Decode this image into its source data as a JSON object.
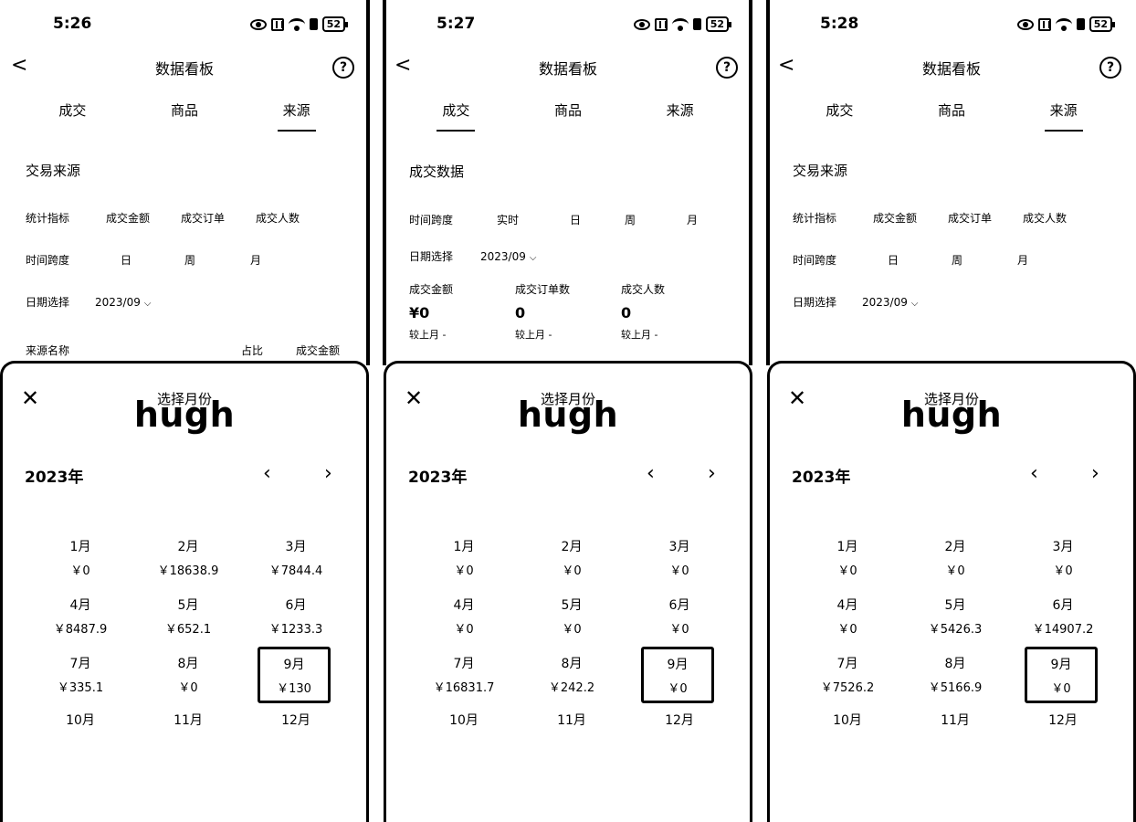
{
  "phones": [
    {
      "status": {
        "time": "5:26",
        "battery": "52"
      },
      "header": {
        "back": "<",
        "title": "数据看板",
        "help": "?"
      },
      "tabs": [
        "成交",
        "商品",
        "来源"
      ],
      "active_tab": 2,
      "content": {
        "section_title": "交易来源",
        "metric_row": {
          "label": "统计指标",
          "options": [
            "成交金额",
            "成交订单",
            "成交人数"
          ]
        },
        "span_row": {
          "label": "时间跨度",
          "options": [
            "日",
            "周",
            "月"
          ]
        },
        "date_row": {
          "label": "日期选择",
          "value": "2023/09"
        },
        "table_header": {
          "name": "来源名称",
          "share": "占比",
          "amount": "成交金额"
        }
      },
      "sheet": {
        "title": "选择月份",
        "overlay_text": "hugh",
        "year": "2023年",
        "months": [
          {
            "label": "1月",
            "amount": "￥0"
          },
          {
            "label": "2月",
            "amount": "￥18638.9"
          },
          {
            "label": "3月",
            "amount": "￥7844.4"
          },
          {
            "label": "4月",
            "amount": "￥8487.9"
          },
          {
            "label": "5月",
            "amount": "￥652.1"
          },
          {
            "label": "6月",
            "amount": "￥1233.3"
          },
          {
            "label": "7月",
            "amount": "￥335.1"
          },
          {
            "label": "8月",
            "amount": "￥0"
          },
          {
            "label": "9月",
            "amount": "￥130"
          },
          {
            "label": "10月",
            "amount": ""
          },
          {
            "label": "11月",
            "amount": ""
          },
          {
            "label": "12月",
            "amount": ""
          }
        ],
        "selected_month_index": 8
      }
    },
    {
      "status": {
        "time": "5:27",
        "battery": "52"
      },
      "header": {
        "back": "<",
        "title": "数据看板",
        "help": "?"
      },
      "tabs": [
        "成交",
        "商品",
        "来源"
      ],
      "active_tab": 0,
      "content": {
        "section_title": "成交数据",
        "span_row": {
          "label": "时间跨度",
          "options": [
            "实时",
            "日",
            "周",
            "月"
          ]
        },
        "date_row": {
          "label": "日期选择",
          "value": "2023/09"
        },
        "metrics": [
          {
            "label": "成交金额",
            "value": "¥0",
            "compare": "较上月 -"
          },
          {
            "label": "成交订单数",
            "value": "0",
            "compare": "较上月 -"
          },
          {
            "label": "成交人数",
            "value": "0",
            "compare": "较上月 -"
          }
        ]
      },
      "sheet": {
        "title": "选择月份",
        "overlay_text": "hugh",
        "year": "2023年",
        "months": [
          {
            "label": "1月",
            "amount": "￥0"
          },
          {
            "label": "2月",
            "amount": "￥0"
          },
          {
            "label": "3月",
            "amount": "￥0"
          },
          {
            "label": "4月",
            "amount": "￥0"
          },
          {
            "label": "5月",
            "amount": "￥0"
          },
          {
            "label": "6月",
            "amount": "￥0"
          },
          {
            "label": "7月",
            "amount": "￥16831.7"
          },
          {
            "label": "8月",
            "amount": "￥242.2"
          },
          {
            "label": "9月",
            "amount": "￥0"
          },
          {
            "label": "10月",
            "amount": ""
          },
          {
            "label": "11月",
            "amount": ""
          },
          {
            "label": "12月",
            "amount": ""
          }
        ],
        "selected_month_index": 8
      }
    },
    {
      "status": {
        "time": "5:28",
        "battery": "52"
      },
      "header": {
        "back": "<",
        "title": "数据看板",
        "help": "?"
      },
      "tabs": [
        "成交",
        "商品",
        "来源"
      ],
      "active_tab": 2,
      "content": {
        "section_title": "交易来源",
        "metric_row": {
          "label": "统计指标",
          "options": [
            "成交金额",
            "成交订单",
            "成交人数"
          ]
        },
        "span_row": {
          "label": "时间跨度",
          "options": [
            "日",
            "周",
            "月"
          ]
        },
        "date_row": {
          "label": "日期选择",
          "value": "2023/09"
        }
      },
      "sheet": {
        "title": "选择月份",
        "overlay_text": "hugh",
        "year": "2023年",
        "months": [
          {
            "label": "1月",
            "amount": "￥0"
          },
          {
            "label": "2月",
            "amount": "￥0"
          },
          {
            "label": "3月",
            "amount": "￥0"
          },
          {
            "label": "4月",
            "amount": "￥0"
          },
          {
            "label": "5月",
            "amount": "￥5426.3"
          },
          {
            "label": "6月",
            "amount": "￥14907.2"
          },
          {
            "label": "7月",
            "amount": "￥7526.2"
          },
          {
            "label": "8月",
            "amount": "￥5166.9"
          },
          {
            "label": "9月",
            "amount": "￥0"
          },
          {
            "label": "10月",
            "amount": ""
          },
          {
            "label": "11月",
            "amount": ""
          },
          {
            "label": "12月",
            "amount": ""
          }
        ],
        "selected_month_index": 8
      }
    }
  ]
}
